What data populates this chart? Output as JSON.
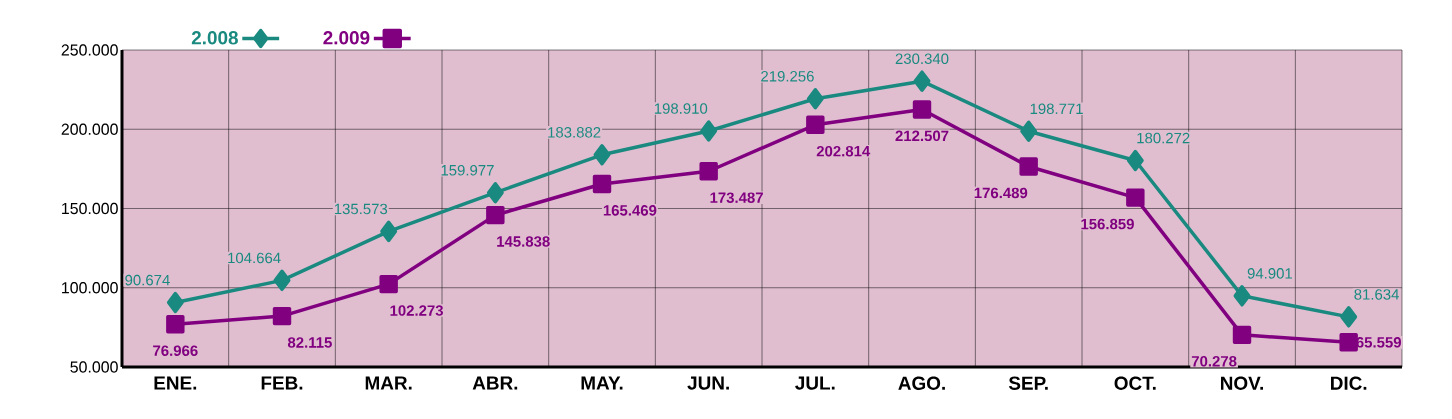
{
  "chart_data": {
    "type": "line",
    "categories": [
      "ENE.",
      "FEB.",
      "MAR.",
      "ABR.",
      "MAY.",
      "JUN.",
      "JUL.",
      "AGO.",
      "SEP.",
      "OCT.",
      "NOV.",
      "DIC."
    ],
    "series": [
      {
        "name": "2.008",
        "color": "#1a8a80",
        "marker": "diamond",
        "values": [
          90674,
          104664,
          135573,
          159977,
          183882,
          198910,
          219256,
          230340,
          198771,
          180272,
          94901,
          81634
        ],
        "value_labels": [
          "90.674",
          "104.664",
          "135.573",
          "159.977",
          "183.882",
          "198.910",
          "219.256",
          "230.340",
          "198.771",
          "180.272",
          "94.901",
          "81.634"
        ]
      },
      {
        "name": "2.009",
        "color": "#800080",
        "marker": "square",
        "values": [
          76966,
          82115,
          102273,
          145838,
          165469,
          173487,
          202814,
          212507,
          176489,
          156859,
          70278,
          65559
        ],
        "value_labels": [
          "76.966",
          "82.115",
          "102.273",
          "145.838",
          "165.469",
          "173.487",
          "202.814",
          "212.507",
          "176.489",
          "156.859",
          "70.278",
          "65.559"
        ]
      }
    ],
    "ylim": [
      50000,
      250000
    ],
    "yticks": [
      {
        "value": 50000,
        "label": "50.000"
      },
      {
        "value": 100000,
        "label": "100.000"
      },
      {
        "value": 150000,
        "label": "150.000"
      },
      {
        "value": 200000,
        "label": "200.000"
      },
      {
        "value": 250000,
        "label": "250.000"
      }
    ],
    "grid": true,
    "legend": "top",
    "line_style": "solid"
  }
}
